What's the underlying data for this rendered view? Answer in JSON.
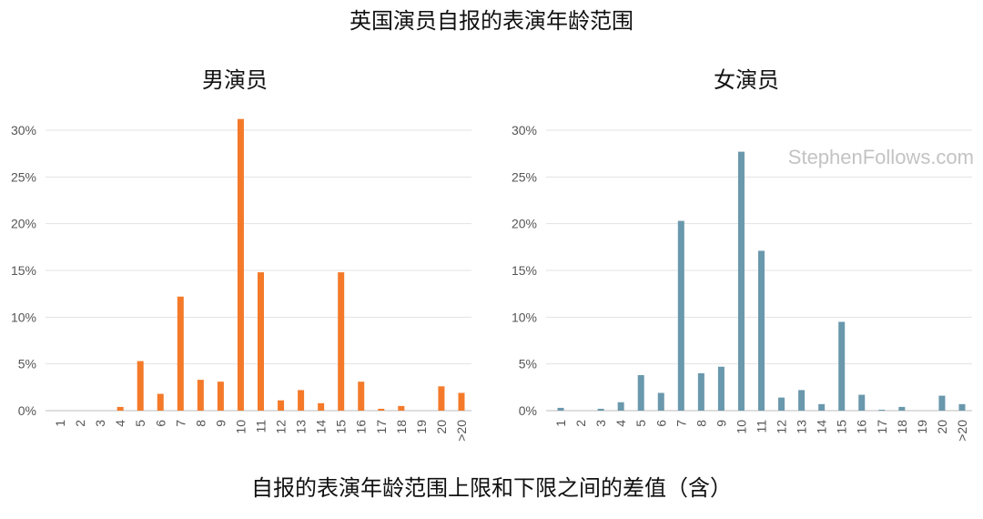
{
  "title": "英国演员自报的表演年龄范围",
  "xlabel": "自报的表演年龄范围上限和下限之间的差值（含）",
  "watermark": "StephenFollows.com",
  "chart_data": [
    {
      "type": "bar",
      "title": "男演员",
      "color": "#f47a2a",
      "categories": [
        "1",
        "2",
        "3",
        "4",
        "5",
        "6",
        "7",
        "8",
        "9",
        "10",
        "11",
        "12",
        "13",
        "14",
        "15",
        "16",
        "17",
        "18",
        "19",
        "20",
        ">20"
      ],
      "values": [
        0,
        0,
        0,
        0.4,
        5.3,
        1.8,
        12.2,
        3.3,
        3.1,
        31.2,
        14.8,
        1.1,
        2.2,
        0.8,
        14.8,
        3.1,
        0.2,
        0.5,
        0,
        2.6,
        1.9
      ],
      "y_ticks": [
        "0%",
        "5%",
        "10%",
        "15%",
        "20%",
        "25%",
        "30%"
      ],
      "ylim": [
        0,
        30
      ],
      "grid": true
    },
    {
      "type": "bar",
      "title": "女演员",
      "color": "#6a98ad",
      "categories": [
        "1",
        "2",
        "3",
        "4",
        "5",
        "6",
        "7",
        "8",
        "9",
        "10",
        "11",
        "12",
        "13",
        "14",
        "15",
        "16",
        "17",
        "18",
        "19",
        "20",
        ">20"
      ],
      "values": [
        0.3,
        0,
        0.2,
        0.9,
        3.8,
        1.9,
        20.3,
        4.0,
        4.7,
        27.7,
        17.1,
        1.4,
        2.2,
        0.7,
        9.5,
        1.7,
        0.1,
        0.4,
        0,
        1.6,
        0.7
      ],
      "y_ticks": [
        "0%",
        "5%",
        "10%",
        "15%",
        "20%",
        "25%",
        "30%"
      ],
      "ylim": [
        0,
        30
      ],
      "grid": true
    }
  ]
}
